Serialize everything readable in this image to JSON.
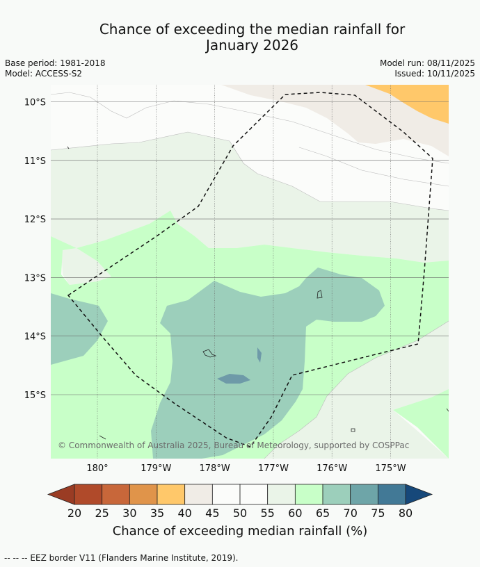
{
  "title": {
    "line1": "Chance of exceeding the median rainfall for",
    "line2": "January 2026"
  },
  "meta": {
    "base_period": "Base period: 1981-2018",
    "model": "Model: ACCESS-S2",
    "model_run": "Model run: 08/11/2025",
    "issued": "Issued: 10/11/2025"
  },
  "map": {
    "lat_labels": [
      "10°S",
      "11°S",
      "12°S",
      "13°S",
      "14°S",
      "15°S"
    ],
    "lon_labels": [
      "180°",
      "179°W",
      "178°W",
      "177°W",
      "176°W",
      "175°W"
    ],
    "lat_values": [
      -10,
      -11,
      -12,
      -13,
      -14,
      -15
    ],
    "lon_values": [
      180,
      -179,
      -178,
      -177,
      -176,
      -175
    ],
    "copyright": "© Commonwealth of Australia 2025, Bureau of Meteorology, supported by COSPPac",
    "colors": {
      "c20_25": "#b04a2a",
      "c25_30": "#c8673a",
      "c30_35": "#e0944a",
      "c35_40": "#ffc86a",
      "c40_45": "#f0ece6",
      "c45_50": "#fbfcfa",
      "c50_55": "#fbfcfa",
      "c55_60": "#eaf4e8",
      "c60_65": "#c8ffc8",
      "c65_70": "#9ccfbb",
      "c70_75": "#6ea5a8",
      "c75_80": "#427996",
      "below": "#9a3c24",
      "above": "#16487a",
      "land": "#6e9aa8"
    }
  },
  "colorbar": {
    "ticks": [
      "20",
      "25",
      "30",
      "35",
      "40",
      "45",
      "50",
      "55",
      "60",
      "65",
      "70",
      "75",
      "80"
    ],
    "label": "Chance of exceeding median rainfall (%)"
  },
  "footer": {
    "eez_note": "--  --  -- EEZ border V11 (Flanders Marine Institute, 2019)."
  }
}
